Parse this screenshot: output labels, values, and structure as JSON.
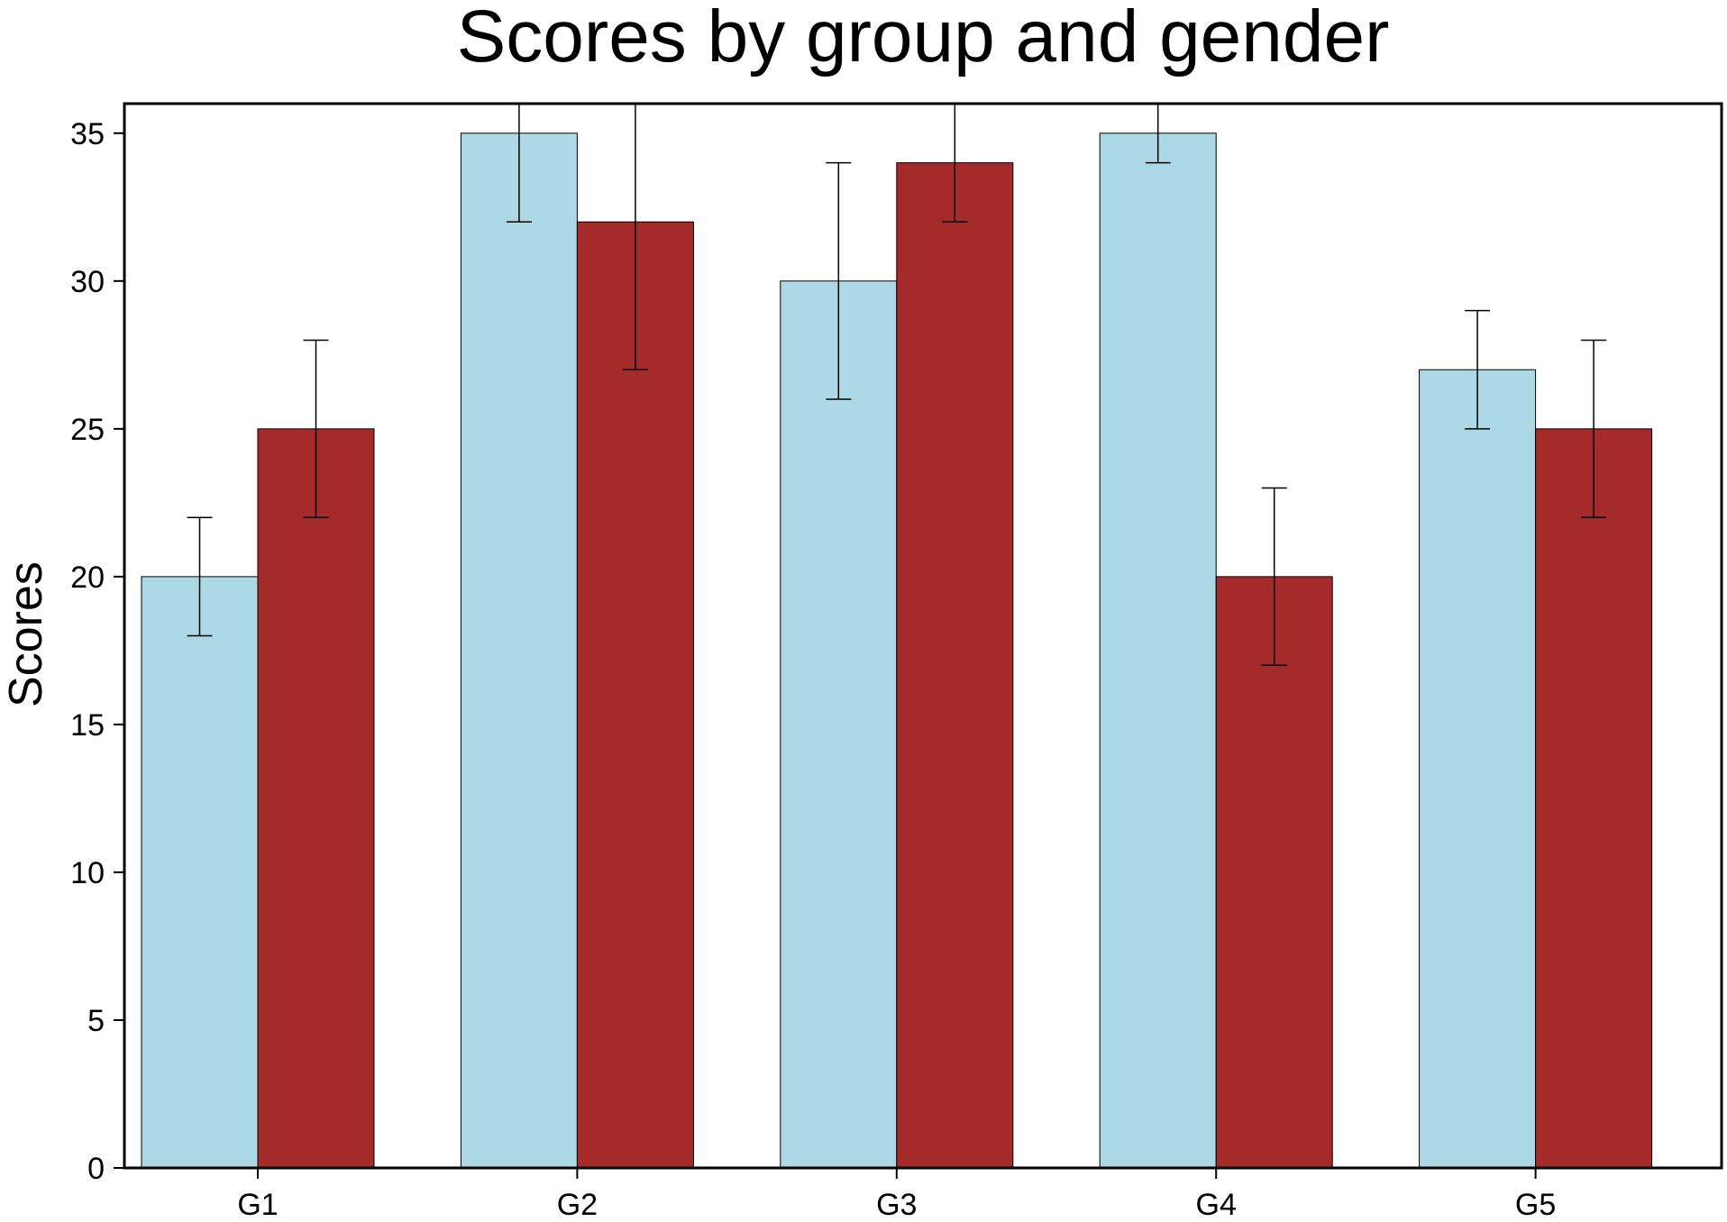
{
  "chart_data": {
    "type": "bar",
    "title": "Scores by group and gender",
    "xlabel": "",
    "ylabel": "Scores",
    "categories": [
      "G1",
      "G2",
      "G3",
      "G4",
      "G5"
    ],
    "ylim": [
      0,
      36
    ],
    "yticks": [
      0,
      5,
      10,
      15,
      20,
      25,
      30,
      35
    ],
    "grid": false,
    "legend": "none",
    "series": [
      {
        "values": [
          20,
          35,
          30,
          35,
          27
        ],
        "errors": [
          2,
          3,
          4,
          1,
          2
        ],
        "color": "#add8e6"
      },
      {
        "values": [
          25,
          32,
          34,
          20,
          25
        ],
        "errors": [
          3,
          5,
          2,
          3,
          3
        ],
        "color": "#a52a2a"
      }
    ]
  }
}
